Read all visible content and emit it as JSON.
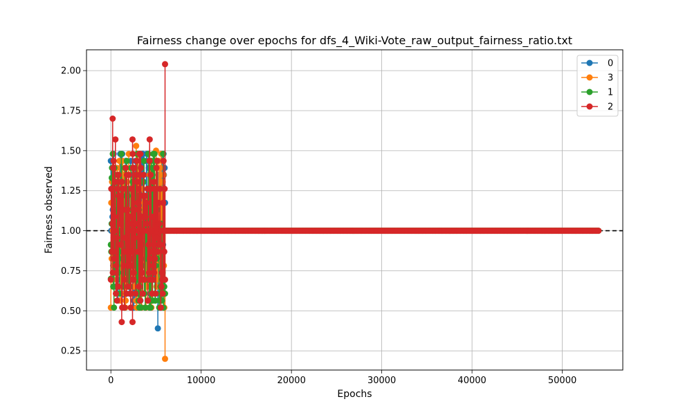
{
  "chart_data": {
    "type": "line",
    "title": "Fairness change over epochs for dfs_4_Wiki-Vote_raw_output_fairness_ratio.txt",
    "xlabel": "Epochs",
    "ylabel": "Fairness observed",
    "xlim": [
      -2700,
      56700
    ],
    "ylim": [
      0.13,
      2.13
    ],
    "x_ticks": [
      0,
      10000,
      20000,
      30000,
      40000,
      50000
    ],
    "x_tick_labels": [
      "0",
      "10000",
      "20000",
      "30000",
      "40000",
      "50000"
    ],
    "y_ticks": [
      0.25,
      0.5,
      0.75,
      1.0,
      1.25,
      1.5,
      1.75,
      2.0
    ],
    "y_tick_labels": [
      "0.25",
      "0.50",
      "0.75",
      "1.00",
      "1.25",
      "1.50",
      "1.75",
      "2.00"
    ],
    "grid": true,
    "legend_position": "top-right",
    "reference_line": {
      "y": 1.0,
      "style": "dashed",
      "color": "#000000"
    },
    "noisy_region": {
      "x_range": [
        0,
        6000
      ],
      "y_range": [
        0.52,
        1.48
      ]
    },
    "flat_region": {
      "x_range": [
        6000,
        54000
      ],
      "y": 1.0
    },
    "series": [
      {
        "name": "0",
        "color": "#1f77b4",
        "extremes": [
          {
            "x": 1500,
            "y": 0.6
          },
          {
            "x": 3400,
            "y": 1.46
          },
          {
            "x": 5200,
            "y": 0.39
          }
        ]
      },
      {
        "name": "3",
        "color": "#ff7f0e",
        "extremes": [
          {
            "x": 2800,
            "y": 1.53
          },
          {
            "x": 5000,
            "y": 1.5
          },
          {
            "x": 6000,
            "y": 0.2
          }
        ]
      },
      {
        "name": "1",
        "color": "#2ca02c",
        "extremes": [
          {
            "x": 0,
            "y": 0.7
          },
          {
            "x": 100,
            "y": 1.33
          }
        ]
      },
      {
        "name": "2",
        "color": "#d62728",
        "extremes": [
          {
            "x": 200,
            "y": 1.7
          },
          {
            "x": 500,
            "y": 1.57
          },
          {
            "x": 1200,
            "y": 0.43
          },
          {
            "x": 2400,
            "y": 0.43
          },
          {
            "x": 2400,
            "y": 1.57
          },
          {
            "x": 4300,
            "y": 1.57
          },
          {
            "x": 6000,
            "y": 2.04
          }
        ]
      }
    ]
  }
}
